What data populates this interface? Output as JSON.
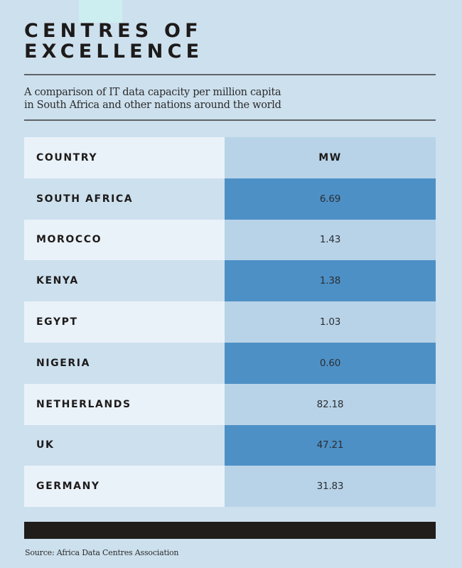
{
  "title": "CENTRES OF\nEXCELLENCE",
  "subtitle": "A comparison of IT data capacity per million capita\nin South Africa and other nations around the world",
  "table": {
    "headers": {
      "country": "COUNTRY",
      "value": "MW"
    },
    "rows": [
      {
        "country": "SOUTH AFRICA",
        "value": "6.69"
      },
      {
        "country": "MOROCCO",
        "value": "1.43"
      },
      {
        "country": "KENYA",
        "value": "1.38"
      },
      {
        "country": "EGYPT",
        "value": "1.03"
      },
      {
        "country": "NIGERIA",
        "value": "0.60"
      },
      {
        "country": "NETHERLANDS",
        "value": "82.18"
      },
      {
        "country": "UK",
        "value": "47.21"
      },
      {
        "country": "GERMANY",
        "value": "31.83"
      }
    ]
  },
  "source": "Source: Africa Data Centres Association",
  "colors": {
    "background": "#cde0ee",
    "accent": "#4d90c6",
    "light_value_cell": "#b8d3e8",
    "light_country_cell": "#eaf2f9",
    "footer_bar": "#201d1b"
  }
}
